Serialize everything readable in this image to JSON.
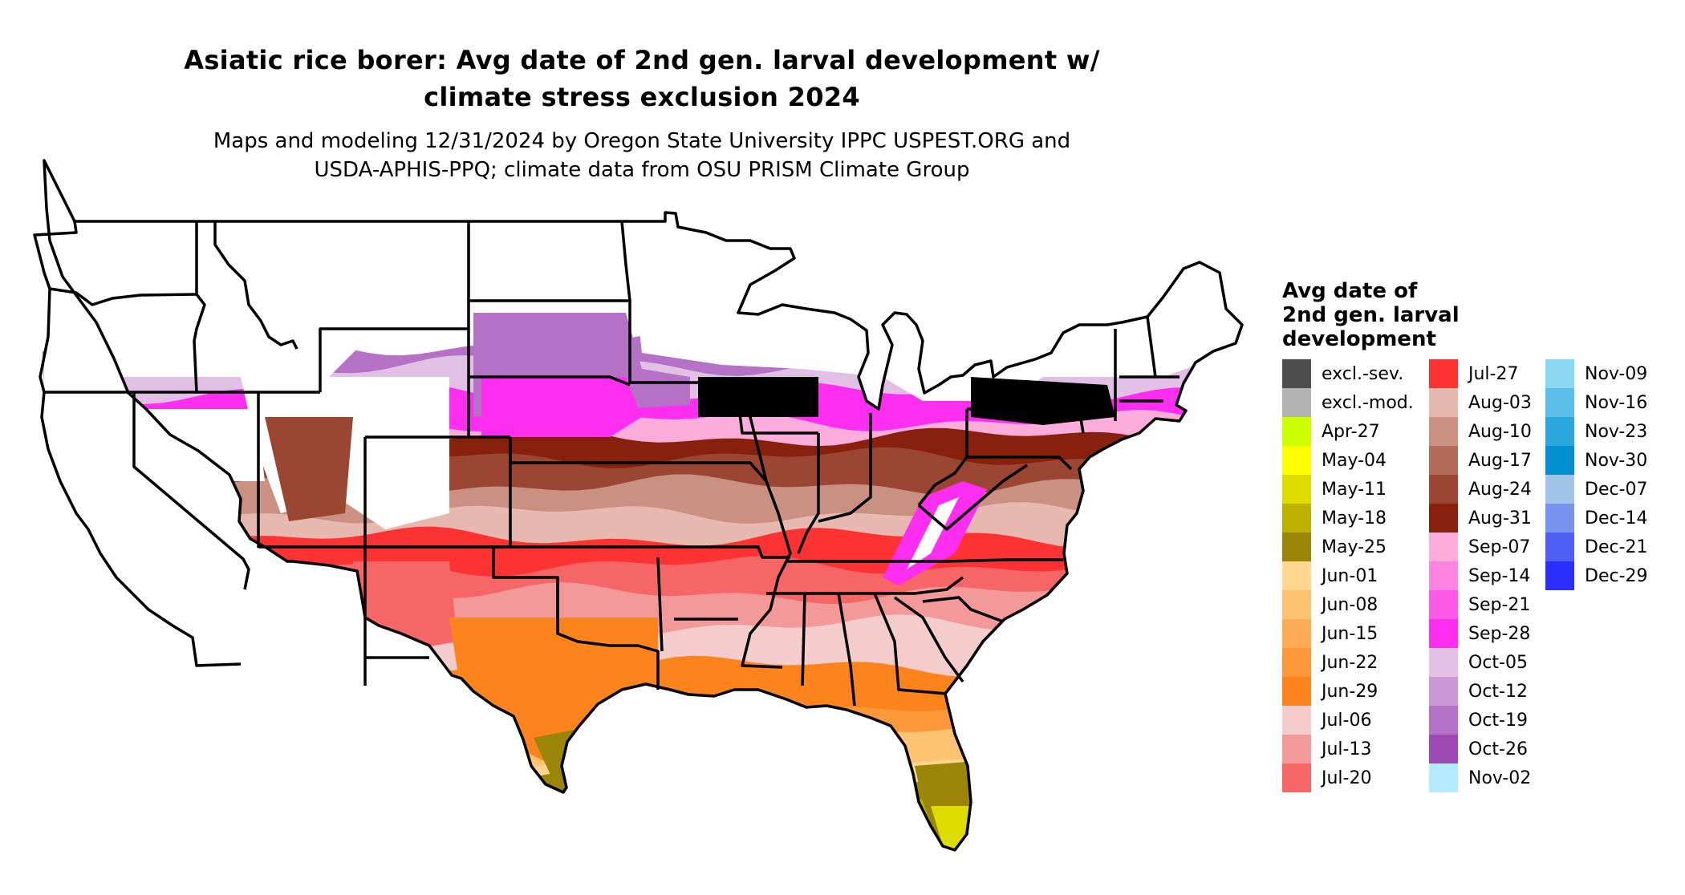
{
  "title": {
    "line1": "Asiatic rice borer: Avg date of 2nd gen. larval development w/",
    "line2": "climate stress exclusion 2024"
  },
  "subtitle": {
    "line1": "Maps and modeling 12/31/2024 by Oregon State University IPPC USPEST.ORG and",
    "line2": "USDA-APHIS-PPQ; climate data from OSU PRISM Climate Group"
  },
  "legend": {
    "title_lines": [
      "Avg date of",
      "2nd gen. larval",
      "development"
    ],
    "columns": [
      [
        {
          "label": "excl.-sev.",
          "color": "#4d4d4d"
        },
        {
          "label": "excl.-mod.",
          "color": "#b3b3b3"
        },
        {
          "label": "Apr-27",
          "color": "#ccff00"
        },
        {
          "label": "May-04",
          "color": "#ffff00"
        },
        {
          "label": "May-11",
          "color": "#dedb00"
        },
        {
          "label": "May-18",
          "color": "#bcb100"
        },
        {
          "label": "May-25",
          "color": "#9a8508"
        },
        {
          "label": "Jun-01",
          "color": "#fed68e"
        },
        {
          "label": "Jun-08",
          "color": "#fec372"
        },
        {
          "label": "Jun-15",
          "color": "#fdac55"
        },
        {
          "label": "Jun-22",
          "color": "#fd983a"
        },
        {
          "label": "Jun-29",
          "color": "#fd841c"
        },
        {
          "label": "Jul-06",
          "color": "#f4cccc"
        },
        {
          "label": "Jul-13",
          "color": "#f49999"
        },
        {
          "label": "Jul-20",
          "color": "#f76666"
        }
      ],
      [
        {
          "label": "Jul-27",
          "color": "#fd3333"
        },
        {
          "label": "Aug-03",
          "color": "#e6b8b0"
        },
        {
          "label": "Aug-10",
          "color": "#ca9082"
        },
        {
          "label": "Aug-17",
          "color": "#b26a5a"
        },
        {
          "label": "Aug-24",
          "color": "#9b4533"
        },
        {
          "label": "Aug-31",
          "color": "#87200d"
        },
        {
          "label": "Sep-07",
          "color": "#fdaddb"
        },
        {
          "label": "Sep-14",
          "color": "#fd84e3"
        },
        {
          "label": "Sep-21",
          "color": "#fd5ae8"
        },
        {
          "label": "Sep-28",
          "color": "#fd2ef0"
        },
        {
          "label": "Oct-05",
          "color": "#e2c0e6"
        },
        {
          "label": "Oct-12",
          "color": "#cb98d6"
        },
        {
          "label": "Oct-19",
          "color": "#b571c5"
        },
        {
          "label": "Oct-26",
          "color": "#9d4ab4"
        },
        {
          "label": "Nov-02",
          "color": "#b4eafd"
        }
      ],
      [
        {
          "label": "Nov-09",
          "color": "#8bd6f3"
        },
        {
          "label": "Nov-16",
          "color": "#5bbee8"
        },
        {
          "label": "Nov-23",
          "color": "#2ba6dd"
        },
        {
          "label": "Nov-30",
          "color": "#0090d2"
        },
        {
          "label": "Dec-07",
          "color": "#a2c4e8"
        },
        {
          "label": "Dec-14",
          "color": "#7893ee"
        },
        {
          "label": "Dec-21",
          "color": "#4f5ff3"
        },
        {
          "label": "Dec-29",
          "color": "#2a2dfd"
        }
      ]
    ]
  },
  "map": {
    "bands": [
      {
        "label": "white",
        "color": "#ffffff"
      },
      {
        "label": "Oct-19",
        "color": "#b571c5"
      },
      {
        "label": "Oct-05",
        "color": "#e2c0e6"
      },
      {
        "label": "Sep-28",
        "color": "#fd2ef0"
      },
      {
        "label": "Sep-07",
        "color": "#fdaddb"
      },
      {
        "label": "Aug-31",
        "color": "#87200d"
      },
      {
        "label": "Aug-24",
        "color": "#9b4533"
      },
      {
        "label": "Aug-10",
        "color": "#ca9082"
      },
      {
        "label": "Aug-03",
        "color": "#e6b8b0"
      },
      {
        "label": "Jul-27",
        "color": "#fd3333"
      },
      {
        "label": "Jul-20",
        "color": "#f76666"
      },
      {
        "label": "Jul-13",
        "color": "#f49999"
      },
      {
        "label": "Jul-06",
        "color": "#f4cccc"
      },
      {
        "label": "Jun-29",
        "color": "#fd841c"
      },
      {
        "label": "Jun-22",
        "color": "#fd983a"
      },
      {
        "label": "Jun-08",
        "color": "#fec372"
      },
      {
        "label": "Jun-01",
        "color": "#fed68e"
      },
      {
        "label": "May-25",
        "color": "#9a8508"
      },
      {
        "label": "May-18",
        "color": "#bcb100"
      },
      {
        "label": "May-11",
        "color": "#dedb00"
      }
    ],
    "excluded_color": "#b3b3b3"
  }
}
